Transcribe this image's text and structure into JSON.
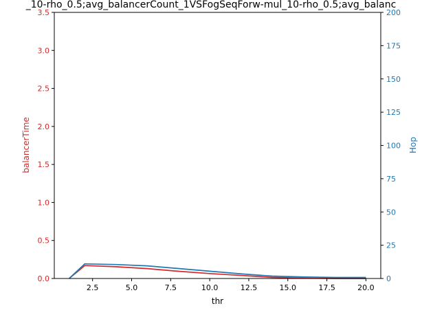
{
  "chart_data": {
    "type": "line",
    "title": "_10-rho_0.5;avg_balancerCount_1VSFogSeqForw-mul_10-rho_0.5;avg_balanc",
    "xlabel": "thr",
    "y1label": "balancerTime",
    "y2label": "Hop",
    "xlim": [
      0.05,
      20.95
    ],
    "y1lim": [
      0,
      3.5
    ],
    "y2lim": [
      0,
      200
    ],
    "xticks": [
      "2.5",
      "5.0",
      "7.5",
      "10.0",
      "12.5",
      "15.0",
      "17.5",
      "20.0"
    ],
    "y1ticks": [
      "0.0",
      "0.5",
      "1.0",
      "1.5",
      "2.0",
      "2.5",
      "3.0",
      "3.5"
    ],
    "y2ticks": [
      "0",
      "25",
      "50",
      "75",
      "100",
      "125",
      "150",
      "175",
      "200"
    ],
    "grid": false,
    "colors": {
      "y1": "#d62728",
      "y2": "#1f77b4",
      "axis": "#000000"
    },
    "series": [
      {
        "axis": "y1",
        "color": "#d62728",
        "x": [
          1,
          2,
          4,
          6,
          8,
          10,
          12,
          14,
          16,
          18,
          20
        ],
        "y": [
          0.0,
          0.17,
          0.155,
          0.13,
          0.095,
          0.065,
          0.04,
          0.015,
          0.005,
          0.0,
          0.0
        ]
      },
      {
        "axis": "y2",
        "color": "#1f77b4",
        "x": [
          1,
          2,
          4,
          6,
          8,
          10,
          12,
          14,
          16,
          18,
          20
        ],
        "y": [
          0,
          11,
          10.5,
          9.5,
          7.5,
          5.5,
          3.5,
          1.8,
          1.2,
          0.8,
          0.8
        ]
      }
    ]
  }
}
